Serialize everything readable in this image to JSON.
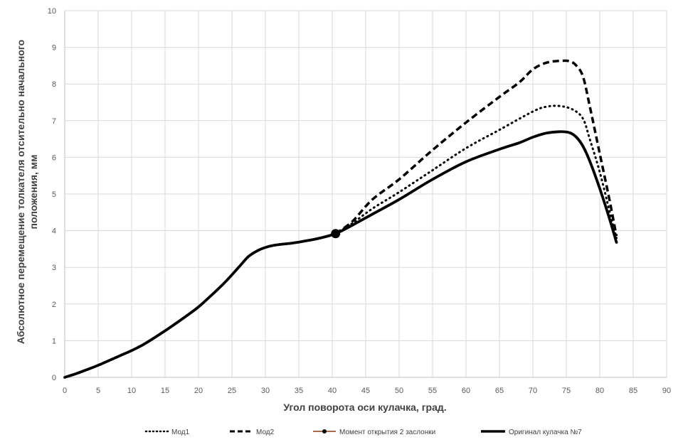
{
  "chart_data": {
    "type": "line",
    "xlabel": "Угол поворота оси кулачка, град.",
    "ylabel_lines": [
      "Абсолютное перемещение толкателя отсительно начального",
      "положения, мм"
    ],
    "xlim": [
      0,
      90
    ],
    "ylim": [
      0,
      10
    ],
    "x_ticks": [
      0,
      5,
      10,
      15,
      20,
      25,
      30,
      35,
      40,
      45,
      50,
      55,
      60,
      65,
      70,
      75,
      80,
      85,
      90
    ],
    "y_ticks": [
      0,
      1,
      2,
      3,
      4,
      5,
      6,
      7,
      8,
      9,
      10
    ],
    "grid": true,
    "legend_position": "bottom",
    "series": [
      {
        "name": "Мод1",
        "style": "dotted",
        "color": "#000000",
        "points": [
          [
            40.5,
            3.92
          ],
          [
            43,
            4.2
          ],
          [
            46,
            4.6
          ],
          [
            50,
            5.05
          ],
          [
            55,
            5.65
          ],
          [
            60,
            6.25
          ],
          [
            65,
            6.75
          ],
          [
            70,
            7.25
          ],
          [
            72,
            7.38
          ],
          [
            74,
            7.4
          ],
          [
            76,
            7.3
          ],
          [
            77.5,
            7.05
          ],
          [
            78.5,
            6.5
          ],
          [
            80,
            5.6
          ],
          [
            81.5,
            4.5
          ],
          [
            82.5,
            3.8
          ]
        ]
      },
      {
        "name": "Мод2",
        "style": "dashed",
        "color": "#000000",
        "points": [
          [
            40.5,
            3.92
          ],
          [
            43,
            4.25
          ],
          [
            46,
            4.85
          ],
          [
            50,
            5.4
          ],
          [
            55,
            6.2
          ],
          [
            60,
            6.95
          ],
          [
            65,
            7.65
          ],
          [
            68,
            8.05
          ],
          [
            70,
            8.4
          ],
          [
            72,
            8.58
          ],
          [
            74,
            8.63
          ],
          [
            75.5,
            8.62
          ],
          [
            76.5,
            8.5
          ],
          [
            77.5,
            8.2
          ],
          [
            78.5,
            7.4
          ],
          [
            80,
            6.1
          ],
          [
            81.5,
            4.8
          ],
          [
            82.5,
            3.85
          ]
        ]
      },
      {
        "name": "Момент открытия 2 заслонки",
        "style": "marker",
        "color": "#843c0c",
        "points": [
          [
            40.5,
            3.92
          ]
        ]
      },
      {
        "name": "Оригинал кулачка №7",
        "style": "solid",
        "color": "#000000",
        "points": [
          [
            0,
            0
          ],
          [
            2,
            0.12
          ],
          [
            5,
            0.33
          ],
          [
            8,
            0.57
          ],
          [
            10,
            0.73
          ],
          [
            12,
            0.92
          ],
          [
            15,
            1.27
          ],
          [
            18,
            1.65
          ],
          [
            20,
            1.92
          ],
          [
            22,
            2.25
          ],
          [
            24,
            2.6
          ],
          [
            26,
            3.0
          ],
          [
            27.5,
            3.3
          ],
          [
            29,
            3.47
          ],
          [
            30.5,
            3.57
          ],
          [
            32,
            3.62
          ],
          [
            34,
            3.66
          ],
          [
            36,
            3.72
          ],
          [
            38,
            3.79
          ],
          [
            40.5,
            3.92
          ],
          [
            43,
            4.15
          ],
          [
            46,
            4.45
          ],
          [
            50,
            4.85
          ],
          [
            55,
            5.4
          ],
          [
            60,
            5.88
          ],
          [
            65,
            6.22
          ],
          [
            68,
            6.4
          ],
          [
            70,
            6.55
          ],
          [
            72,
            6.66
          ],
          [
            74,
            6.7
          ],
          [
            75.5,
            6.67
          ],
          [
            76.5,
            6.55
          ],
          [
            77.5,
            6.3
          ],
          [
            78.5,
            5.9
          ],
          [
            80,
            5.15
          ],
          [
            81.5,
            4.3
          ],
          [
            82.5,
            3.68
          ]
        ]
      }
    ]
  }
}
